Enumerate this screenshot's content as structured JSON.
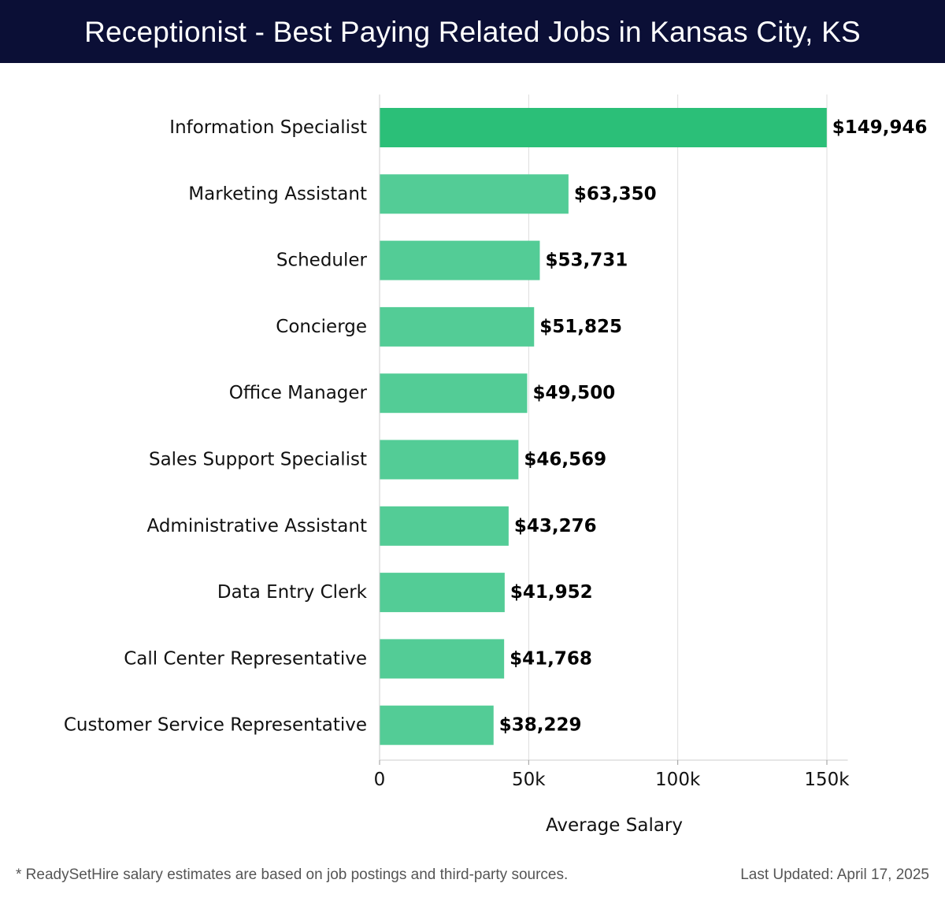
{
  "header": {
    "title": "Receptionist - Best Paying Related Jobs in Kansas City, KS"
  },
  "colors": {
    "header_background": "#0b0f36",
    "highlight_bar": "#2bbf78",
    "bar": "#53cc96",
    "grid": "#dddddd"
  },
  "chart_data": {
    "type": "bar",
    "orientation": "horizontal",
    "categories": [
      "Information Specialist",
      "Marketing Assistant",
      "Scheduler",
      "Concierge",
      "Office Manager",
      "Sales Support Specialist",
      "Administrative Assistant",
      "Data Entry Clerk",
      "Call Center Representative",
      "Customer Service Representative"
    ],
    "values": [
      149946,
      63350,
      53731,
      51825,
      49500,
      46569,
      43276,
      41952,
      41768,
      38229
    ],
    "value_labels": [
      "$149,946",
      "$63,350",
      "$53,731",
      "$51,825",
      "$49,500",
      "$46,569",
      "$43,276",
      "$41,952",
      "$41,768",
      "$38,229"
    ],
    "xlabel": "Average Salary",
    "xlim": [
      0,
      157000
    ],
    "xticks": [
      0,
      50000,
      100000,
      150000
    ],
    "xtick_labels": [
      "0",
      "50k",
      "100k",
      "150k"
    ],
    "grid": true,
    "highlight_index": 0
  },
  "footer": {
    "note": "* ReadySetHire salary estimates are based on job postings and third-party sources.",
    "updated": "Last Updated: April 17, 2025"
  }
}
